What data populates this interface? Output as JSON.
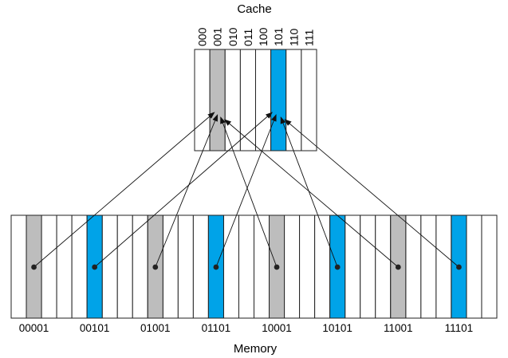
{
  "cache": {
    "title": "Cache",
    "line_labels": [
      "000",
      "001",
      "010",
      "011",
      "100",
      "101",
      "110",
      "111"
    ],
    "highlight": {
      "001": "#bdbdbd",
      "101": "#00a3e8"
    }
  },
  "memory": {
    "title": "Memory",
    "block_labels": [
      "00001",
      "00101",
      "01001",
      "01101",
      "10001",
      "10101",
      "11001",
      "11101"
    ],
    "gray_color": "#bdbdbd",
    "blue_color": "#00a3e8"
  },
  "mapping": [
    {
      "from": "00001",
      "to": "001"
    },
    {
      "from": "00101",
      "to": "101"
    },
    {
      "from": "01001",
      "to": "001"
    },
    {
      "from": "01101",
      "to": "101"
    },
    {
      "from": "10001",
      "to": "001"
    },
    {
      "from": "10101",
      "to": "101"
    },
    {
      "from": "11001",
      "to": "001"
    },
    {
      "from": "11101",
      "to": "101"
    }
  ]
}
